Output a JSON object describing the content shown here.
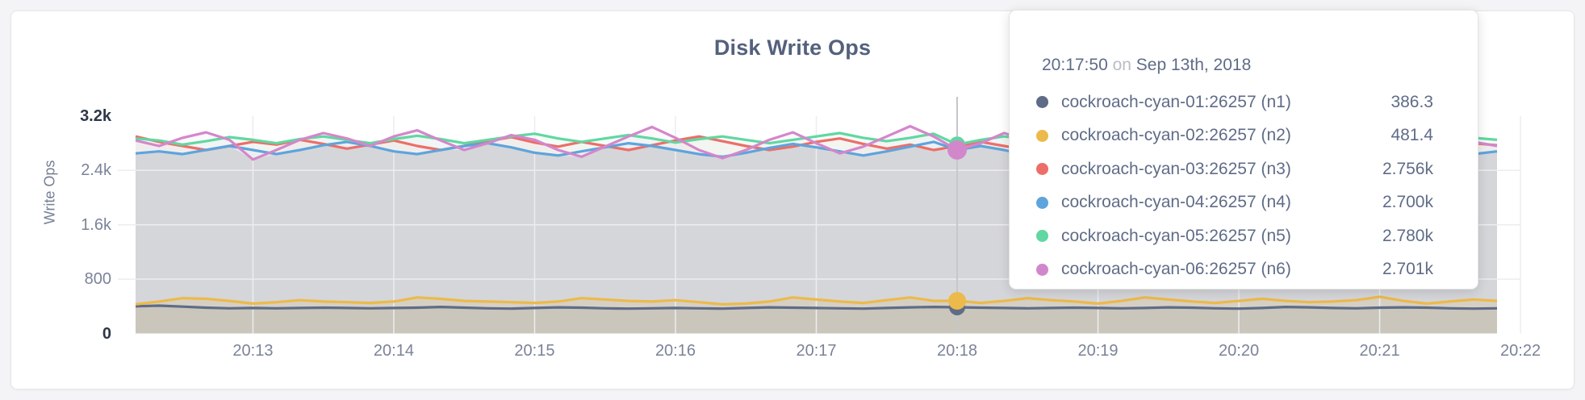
{
  "colors": {
    "page_bg": "#f4f4f6",
    "card_bg": "#ffffff",
    "title": "#54617d",
    "axis_tick": "#7b8398",
    "axis_tick_maxmin": "#2e3749",
    "gridline": "#ededf0",
    "hover_guideline": "#c6c6cb",
    "area_base_gray": "#e6e6e8",
    "tooltip_text": "#5f6c87",
    "tooltip_conjunction": "#b9bdc6"
  },
  "chart_data": {
    "type": "area",
    "title": "Disk Write Ops",
    "ylabel": "Write Ops",
    "xlabel": "",
    "ylim": [
      0,
      3200
    ],
    "grid": true,
    "legend_position": "tooltip",
    "x_tick_labels": [
      "20:13",
      "20:14",
      "20:15",
      "20:16",
      "20:17",
      "20:18",
      "20:19",
      "20:20",
      "20:21",
      "20:22"
    ],
    "y_ticks": [
      {
        "label": "3.2k",
        "value": 3200,
        "strong": true
      },
      {
        "label": "2.4k",
        "value": 2400,
        "strong": false
      },
      {
        "label": "1.6k",
        "value": 1600,
        "strong": false
      },
      {
        "label": "800",
        "value": 800,
        "strong": false
      },
      {
        "label": "0",
        "value": 0,
        "strong": true
      }
    ],
    "x_start_time": "20:12:10",
    "x_point_interval_seconds": 10,
    "hover_index": 35,
    "hover_time": "20:17:50",
    "series": [
      {
        "name": "cockroach-cyan-01:26257 (n1)",
        "short": "n1",
        "color": "#5f6c87",
        "fill_opacity": 0.12,
        "dot_r": 10,
        "band": "low",
        "values": [
          400,
          410,
          395,
          380,
          370,
          375,
          370,
          375,
          380,
          375,
          370,
          375,
          380,
          390,
          380,
          370,
          365,
          375,
          385,
          380,
          370,
          365,
          370,
          375,
          370,
          365,
          375,
          385,
          380,
          375,
          370,
          365,
          375,
          385,
          390,
          386,
          380,
          375,
          370,
          375,
          380,
          375,
          370,
          375,
          385,
          380,
          370,
          365,
          375,
          390,
          385,
          375,
          370,
          380,
          385,
          380,
          370,
          365,
          370
        ]
      },
      {
        "name": "cockroach-cyan-02:26257 (n2)",
        "short": "n2",
        "color": "#ecba4b",
        "fill_opacity": 0.16,
        "dot_r": 11,
        "band": "low",
        "values": [
          430,
          470,
          520,
          510,
          480,
          440,
          460,
          490,
          470,
          460,
          450,
          470,
          530,
          510,
          480,
          470,
          460,
          450,
          470,
          520,
          500,
          480,
          470,
          490,
          460,
          430,
          440,
          470,
          530,
          500,
          470,
          450,
          490,
          530,
          480,
          481,
          450,
          480,
          520,
          490,
          470,
          440,
          480,
          530,
          500,
          470,
          450,
          480,
          510,
          480,
          460,
          470,
          490,
          540,
          480,
          440,
          470,
          500,
          480
        ]
      },
      {
        "name": "cockroach-cyan-03:26257 (n3)",
        "short": "n3",
        "color": "#ed6e68",
        "fill_opacity": 0.05,
        "dot_r": 10,
        "band": "top",
        "values": [
          2900,
          2820,
          2760,
          2700,
          2760,
          2820,
          2780,
          2850,
          2790,
          2720,
          2780,
          2840,
          2760,
          2700,
          2760,
          2830,
          2890,
          2810,
          2750,
          2820,
          2760,
          2700,
          2770,
          2840,
          2900,
          2830,
          2760,
          2700,
          2750,
          2820,
          2870,
          2790,
          2720,
          2780,
          2700,
          2756,
          2820,
          2760,
          2700,
          2760,
          2940,
          2850,
          2770,
          2700,
          2760,
          2820,
          2760,
          2690,
          2750,
          2820,
          2880,
          2800,
          2740,
          2700,
          2760,
          2710,
          2760,
          2800,
          2770
        ]
      },
      {
        "name": "cockroach-cyan-04:26257 (n4)",
        "short": "n4",
        "color": "#5ea4dc",
        "fill_opacity": 0.05,
        "dot_r": 10,
        "band": "top",
        "values": [
          2650,
          2680,
          2640,
          2700,
          2760,
          2700,
          2640,
          2700,
          2770,
          2820,
          2760,
          2680,
          2640,
          2700,
          2760,
          2800,
          2740,
          2660,
          2620,
          2680,
          2740,
          2800,
          2760,
          2700,
          2640,
          2600,
          2660,
          2730,
          2790,
          2740,
          2680,
          2620,
          2680,
          2750,
          2820,
          2700,
          2760,
          2700,
          2620,
          2680,
          2760,
          2860,
          2780,
          2700,
          2650,
          2700,
          2770,
          2710,
          2650,
          2700,
          2760,
          2820,
          2740,
          2660,
          2700,
          2750,
          2690,
          2640,
          2680
        ]
      },
      {
        "name": "cockroach-cyan-05:26257 (n5)",
        "short": "n5",
        "color": "#61d7a1",
        "fill_opacity": 0.07,
        "dot_r": 10,
        "band": "top",
        "values": [
          2870,
          2840,
          2780,
          2830,
          2890,
          2850,
          2800,
          2860,
          2900,
          2850,
          2800,
          2860,
          2910,
          2860,
          2800,
          2850,
          2900,
          2940,
          2870,
          2820,
          2870,
          2920,
          2870,
          2810,
          2860,
          2900,
          2850,
          2800,
          2850,
          2900,
          2950,
          2880,
          2830,
          2880,
          2940,
          2780,
          2850,
          2900,
          2860,
          2810,
          2860,
          2920,
          2870,
          2820,
          2870,
          2910,
          2860,
          2800,
          2850,
          2890,
          2850,
          2800,
          2850,
          2900,
          2860,
          2810,
          2850,
          2880,
          2850
        ]
      },
      {
        "name": "cockroach-cyan-06:26257 (n6)",
        "short": "n6",
        "color": "#d387cb",
        "fill_opacity": 0.06,
        "dot_r": 12,
        "band": "top",
        "values": [
          2840,
          2760,
          2880,
          2960,
          2850,
          2560,
          2700,
          2850,
          2950,
          2870,
          2760,
          2900,
          2990,
          2840,
          2700,
          2800,
          2920,
          2850,
          2700,
          2600,
          2750,
          2900,
          3040,
          2880,
          2700,
          2580,
          2700,
          2850,
          2960,
          2800,
          2650,
          2750,
          2900,
          3050,
          2900,
          2701,
          2800,
          2950,
          2850,
          2700,
          2600,
          2720,
          2900,
          3000,
          2850,
          2700,
          2770,
          2890,
          2750,
          2620,
          2700,
          2850,
          2950,
          2800,
          2700,
          2760,
          2900,
          2820,
          2760
        ]
      }
    ]
  },
  "tooltip": {
    "time": "20:17:50",
    "conjunction": "on",
    "date": "Sep 13th, 2018",
    "rows": [
      {
        "label": "cockroach-cyan-01:26257 (n1)",
        "value": "386.3",
        "color": "#5f6c87"
      },
      {
        "label": "cockroach-cyan-02:26257 (n2)",
        "value": "481.4",
        "color": "#ecba4b"
      },
      {
        "label": "cockroach-cyan-03:26257 (n3)",
        "value": "2.756k",
        "color": "#ed6e68"
      },
      {
        "label": "cockroach-cyan-04:26257 (n4)",
        "value": "2.700k",
        "color": "#5ea4dc"
      },
      {
        "label": "cockroach-cyan-05:26257 (n5)",
        "value": "2.780k",
        "color": "#61d7a1"
      },
      {
        "label": "cockroach-cyan-06:26257 (n6)",
        "value": "2.701k",
        "color": "#d387cb"
      }
    ]
  }
}
